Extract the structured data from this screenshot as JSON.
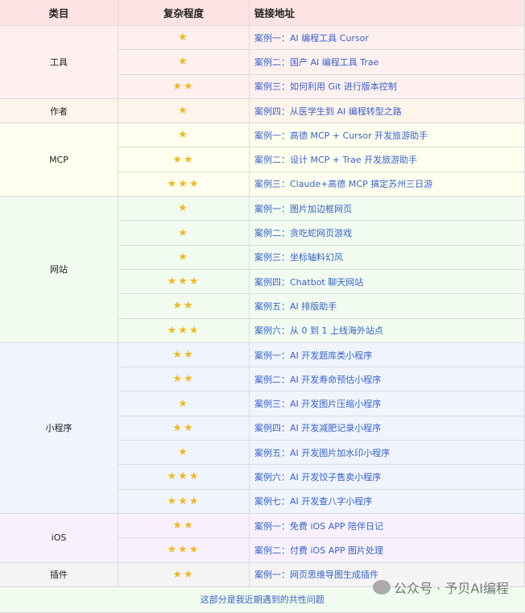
{
  "header": {
    "category": "类目",
    "complexity": "复杂程度",
    "link": "链接地址"
  },
  "groups": [
    {
      "name": "工具",
      "color": "#fff0f0",
      "items": [
        {
          "stars": 1,
          "title": "案例一：AI 编程工具 Cursor"
        },
        {
          "stars": 1,
          "title": "案例二：国产 AI 编程工具 Trae"
        },
        {
          "stars": 2,
          "title": "案例三：如何利用 Git 进行版本控制"
        }
      ]
    },
    {
      "name": "作者",
      "color": "#fff4ec",
      "items": [
        {
          "stars": 1,
          "title": "案例四：从医学生到 AI 编程转型之路"
        }
      ]
    },
    {
      "name": "MCP",
      "color": "#fffff0",
      "items": [
        {
          "stars": 1,
          "title": "案例一：高德 MCP + Cursor 开发旅游助手"
        },
        {
          "stars": 2,
          "title": "案例二：设计 MCP + Trae 开发旅游助手"
        },
        {
          "stars": 3,
          "title": "案例三：Claude+高德 MCP 搞定苏州三日游"
        }
      ]
    },
    {
      "name": "网站",
      "color": "#f1fbf0",
      "items": [
        {
          "stars": 1,
          "title": "案例一：图片加边框网页"
        },
        {
          "stars": 1,
          "title": "案例二：贪吃蛇网页游戏"
        },
        {
          "stars": 1,
          "title": "案例三：坐标轴料幻风"
        },
        {
          "stars": 3,
          "title": "案例四：Chatbot 聊天网站"
        },
        {
          "stars": 2,
          "title": "案例五：AI 排版助手"
        },
        {
          "stars": 3,
          "title": "案例六：从 0 到 1 上线海外站点"
        }
      ]
    },
    {
      "name": "小程序",
      "color": "#eff4ff",
      "items": [
        {
          "stars": 2,
          "title": "案例一：AI 开发题库类小程序"
        },
        {
          "stars": 2,
          "title": "案例二：AI 开发寿命预估小程序"
        },
        {
          "stars": 1,
          "title": "案例三：AI 开发图片压缩小程序"
        },
        {
          "stars": 2,
          "title": "案例四：AI 开发减肥记录小程序"
        },
        {
          "stars": 1,
          "title": "案例五：AI 开发图片加水印小程序"
        },
        {
          "stars": 3,
          "title": "案例六：AI 开发饺子售卖小程序"
        },
        {
          "stars": 3,
          "title": "案例七：AI 开发查八字小程序"
        }
      ]
    },
    {
      "name": "iOS",
      "color": "#f8f1fd",
      "items": [
        {
          "stars": 2,
          "title": "案例一：免费 iOS APP 陪伴日记"
        },
        {
          "stars": 3,
          "title": "案例二：付费 iOS APP 图片处理"
        }
      ]
    },
    {
      "name": "插件",
      "color": "#f4f4f4",
      "items": [
        {
          "stars": 2,
          "title": "案例一：网页思维导图生成插件"
        }
      ]
    }
  ],
  "footer": "这部分是我近期遇到的共性问题",
  "watermark": "公众号 · 予贝AI编程",
  "colors": {
    "header": "#fde3e3",
    "link": "#3a62c9",
    "star": "#f3b820"
  }
}
